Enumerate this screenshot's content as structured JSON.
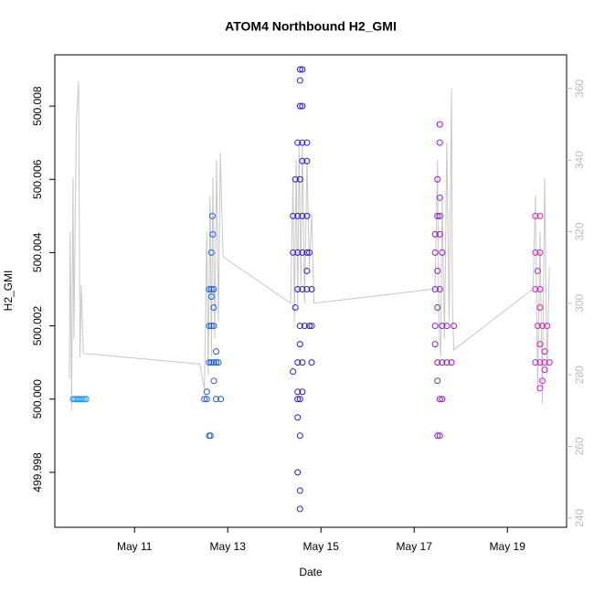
{
  "chart_data": {
    "type": "scatter",
    "title": "ATOM4 Northbound H2_GMI",
    "x_label": "Date",
    "y_label": "H2_GMI",
    "xlim": [
      9.29,
      20.27
    ],
    "xticks": [
      {
        "value": 11,
        "label": "May 11"
      },
      {
        "value": 13,
        "label": "May 13"
      },
      {
        "value": 15,
        "label": "May 15"
      },
      {
        "value": 17,
        "label": "May 17"
      },
      {
        "value": 19,
        "label": "May 19"
      }
    ],
    "ylim": [
      499.9965,
      500.0094
    ],
    "yticks": [
      499.998,
      {
        "value": 500,
        "label": "500.000"
      },
      500.002,
      500.004,
      500.006,
      500.008
    ],
    "y2lim": [
      237.4,
      369.4
    ],
    "y2ticks": [
      240,
      260,
      280,
      300,
      320,
      340,
      360
    ],
    "y2_color": "#bbbbbb",
    "series": [
      {
        "type": "line",
        "axis": "y2",
        "color": "#c8c8c8",
        "x": [
          9.6,
          9.62,
          9.65,
          9.68,
          9.7,
          9.75,
          9.8,
          9.83,
          9.86,
          9.9,
          12.4,
          12.5,
          12.55,
          12.58,
          12.62,
          12.65,
          12.68,
          12.72,
          12.76,
          12.8,
          12.84,
          12.9,
          14.35,
          14.4,
          14.43,
          14.47,
          14.5,
          14.53,
          14.57,
          14.6,
          14.65,
          14.7,
          14.75,
          14.8,
          14.85,
          17.45,
          17.5,
          17.53,
          17.57,
          17.6,
          17.65,
          17.7,
          17.75,
          17.8,
          17.82,
          17.85,
          19.55,
          19.6,
          19.65,
          19.7,
          19.75,
          19.8,
          19.85,
          19.9
        ],
        "values": [
          279,
          320,
          270,
          335,
          290,
          350,
          362,
          285,
          305,
          286,
          283,
          276,
          320,
          280,
          330,
          285,
          335,
          290,
          340,
          295,
          342,
          313,
          300,
          335,
          295,
          340,
          300,
          345,
          305,
          345,
          300,
          340,
          310,
          325,
          300,
          304,
          340,
          295,
          285,
          330,
          290,
          345,
          295,
          360,
          300,
          287,
          304,
          330,
          275,
          320,
          272,
          335,
          280,
          310
        ]
      },
      {
        "type": "scatter",
        "color": "#1a9cf0",
        "x": [
          9.68,
          9.72,
          9.76,
          9.8,
          9.84,
          9.88,
          9.92,
          9.96
        ],
        "values": [
          500,
          500,
          500,
          500,
          500,
          500,
          500,
          500
        ]
      },
      {
        "type": "scatter",
        "color": "#1a5cf0",
        "x": [
          12.5,
          12.55,
          12.6,
          12.63,
          12.6,
          12.65,
          12.7,
          12.75,
          12.8,
          12.6,
          12.65,
          12.7,
          12.6,
          12.65,
          12.7,
          12.65,
          12.67,
          12.68,
          12.7,
          12.75,
          12.75,
          12.85,
          12.7,
          12.55,
          12.65
        ],
        "values": [
          500,
          500,
          499.999,
          499.999,
          500.001,
          500.001,
          500.001,
          500.001,
          500.001,
          500.002,
          500.002,
          500.002,
          500.003,
          500.003,
          500.003,
          500.004,
          500.005,
          500.0045,
          500.0025,
          500.0013,
          500,
          500,
          500.0005,
          500.0002,
          500.0028
        ]
      },
      {
        "type": "scatter",
        "color": "#3a14e0",
        "x": [
          14.55,
          14.6,
          14.55,
          14.55,
          14.6,
          14.5,
          14.6,
          14.7,
          14.45,
          14.55,
          14.6,
          14.7,
          14.4,
          14.5,
          14.6,
          14.7,
          14.4,
          14.5,
          14.6,
          14.7,
          14.75,
          14.5,
          14.6,
          14.7,
          14.8,
          14.45,
          14.55,
          14.65,
          14.75,
          14.8,
          14.5,
          14.6,
          14.8,
          14.4,
          14.5,
          14.6,
          14.5,
          14.55,
          14.5,
          14.55,
          14.5,
          14.55,
          14.55,
          14.55,
          14.7
        ],
        "values": [
          500.009,
          500.009,
          500.0087,
          500.008,
          500.008,
          500.007,
          500.007,
          500.007,
          500.006,
          500.006,
          500.0065,
          500.0065,
          500.005,
          500.005,
          500.005,
          500.005,
          500.004,
          500.004,
          500.004,
          500.004,
          500.004,
          500.003,
          500.003,
          500.003,
          500.003,
          500.0025,
          500.002,
          500.002,
          500.002,
          500.002,
          500.001,
          500.001,
          500.001,
          500.00075,
          500.0002,
          500.0002,
          500,
          500,
          499.9995,
          499.999,
          499.998,
          499.9975,
          499.997,
          500.0015,
          500.0035
        ]
      },
      {
        "type": "scatter",
        "color": "#9a14e6",
        "x": [
          17.55,
          17.55,
          17.5,
          17.55,
          17.5,
          17.55,
          17.45,
          17.55,
          17.45,
          17.6,
          17.5,
          17.45,
          17.55,
          17.5,
          17.45,
          17.6,
          17.7,
          17.45,
          17.5,
          17.6,
          17.7,
          17.8,
          17.5,
          17.55,
          17.6,
          17.5,
          17.55,
          17.85
        ],
        "values": [
          500.0075,
          500.007,
          500.006,
          500.0055,
          500.005,
          500.005,
          500.0045,
          500.0045,
          500.004,
          500.004,
          500.0035,
          500.003,
          500.003,
          500.0025,
          500.002,
          500.002,
          500.002,
          500.0015,
          500.001,
          500.001,
          500.001,
          500.001,
          500.0005,
          500,
          500,
          499.999,
          499.999,
          500.002
        ]
      },
      {
        "type": "scatter",
        "color": "#ee14c8",
        "x": [
          19.6,
          19.7,
          19.6,
          19.7,
          19.65,
          19.6,
          19.7,
          19.7,
          19.65,
          19.75,
          19.85,
          19.7,
          19.8,
          19.6,
          19.7,
          19.8,
          19.9,
          19.75,
          19.7,
          19.8
        ],
        "values": [
          500.005,
          500.005,
          500.004,
          500.004,
          500.0035,
          500.003,
          500.003,
          500.0025,
          500.002,
          500.002,
          500.002,
          500.0015,
          500.0013,
          500.001,
          500.001,
          500.001,
          500.001,
          500.0005,
          500.0003,
          500.0008
        ]
      }
    ]
  }
}
